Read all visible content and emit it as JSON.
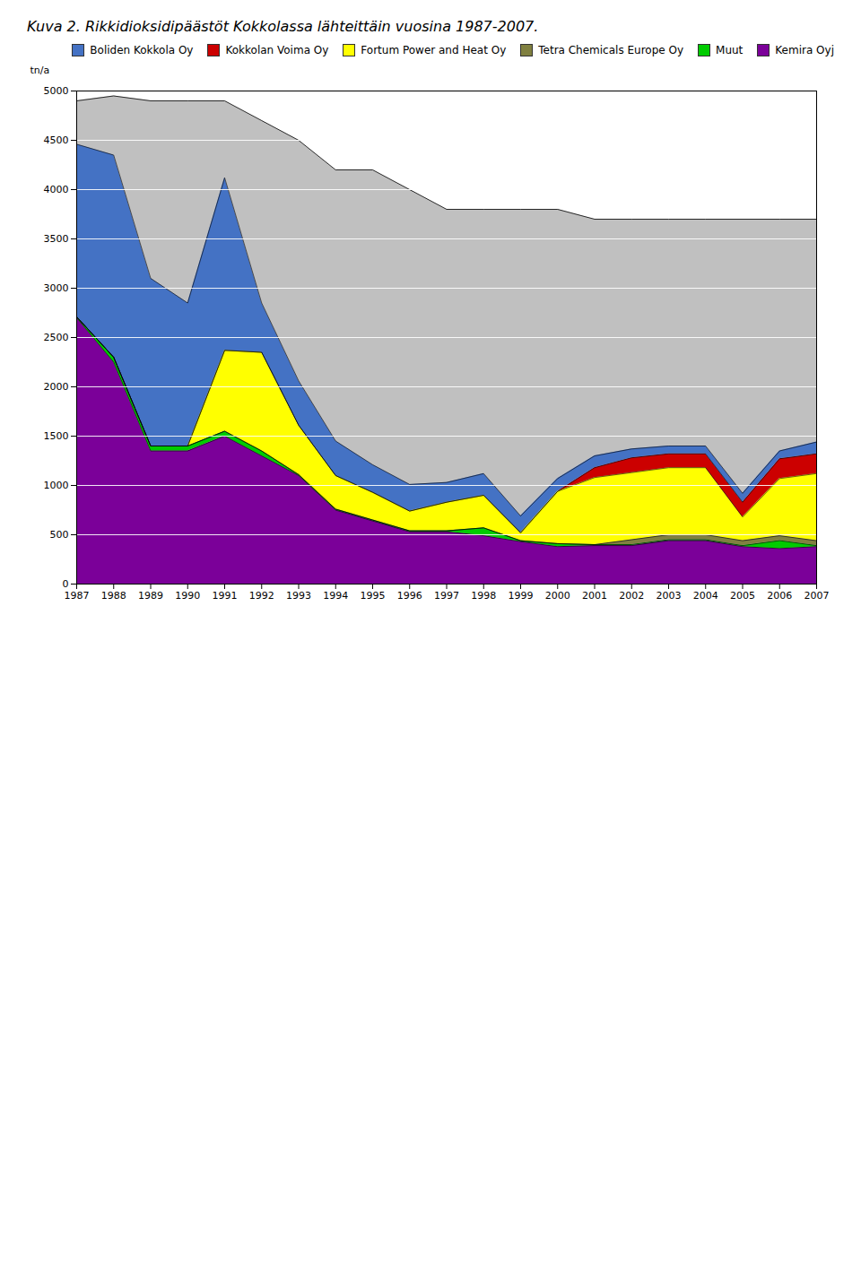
{
  "chart_data": {
    "type": "area",
    "title": "Kuva 2. Rikkidioksidipäästöt Kokkolassa lähteittäin vuosina 1987-2007.",
    "ylabel": "tn/a",
    "x": [
      1987,
      1988,
      1989,
      1990,
      1991,
      1992,
      1993,
      1994,
      1995,
      1996,
      1997,
      1998,
      1999,
      2000,
      2001,
      2002,
      2003,
      2004,
      2005,
      2006,
      2007
    ],
    "xlim": [
      1987,
      2007
    ],
    "xticks": [
      1987,
      1988,
      1989,
      1990,
      1991,
      1992,
      1993,
      1994,
      1995,
      1996,
      1997,
      1998,
      1999,
      2000,
      2001,
      2002,
      2003,
      2004,
      2005,
      2006,
      2007
    ],
    "ylim": [
      0,
      5000
    ],
    "yticks": [
      0,
      500,
      1000,
      1500,
      2000,
      2500,
      3000,
      3500,
      4000,
      4500,
      5000
    ],
    "grid": true,
    "legend": "upper right",
    "stacked": true,
    "series": [
      {
        "type": "area",
        "color": "#C0C0C0",
        "values": [
          4900,
          4950,
          4900,
          4900,
          4900,
          4700,
          4500,
          4200,
          4200,
          4000,
          3800,
          3800,
          3800,
          3800,
          3700,
          3700,
          3700,
          3700,
          3700,
          3700,
          3700
        ]
      },
      {
        "name": "Kemira Oyj",
        "type": "stacked_area",
        "color": "#7B0099",
        "values": [
          2700,
          2250,
          1350,
          1350,
          1500,
          1300,
          1100,
          750,
          640,
          530,
          530,
          490,
          430,
          380,
          390,
          390,
          440,
          440,
          380,
          360,
          380
        ]
      },
      {
        "name": "Muut",
        "type": "stacked_area",
        "color": "#00CC00",
        "values": [
          10,
          50,
          50,
          50,
          50,
          50,
          10,
          10,
          10,
          10,
          10,
          80,
          10,
          30,
          10,
          10,
          10,
          10,
          10,
          80,
          10
        ]
      },
      {
        "name": "Tetra Chemicals Europe Oy",
        "type": "stacked_area",
        "color": "#808040",
        "values": [
          0,
          0,
          0,
          0,
          0,
          0,
          0,
          0,
          0,
          0,
          0,
          0,
          0,
          0,
          0,
          50,
          50,
          50,
          50,
          50,
          50
        ]
      },
      {
        "name": "Fortum Power and Heat Oy",
        "type": "stacked_area",
        "color": "#FFFF00",
        "values": [
          0,
          0,
          0,
          0,
          820,
          1000,
          500,
          340,
          280,
          200,
          290,
          330,
          80,
          530,
          680,
          680,
          680,
          680,
          240,
          580,
          680
        ]
      },
      {
        "name": "Kokkolan Voima Oy",
        "type": "stacked_area",
        "color": "#CC0000",
        "values": [
          0,
          0,
          0,
          0,
          0,
          0,
          0,
          0,
          0,
          0,
          0,
          0,
          0,
          0,
          100,
          150,
          140,
          140,
          150,
          200,
          200
        ]
      },
      {
        "name": "Boliden Kokkola Oy",
        "type": "stacked_area",
        "color": "#4472C4",
        "values": [
          1750,
          2050,
          1700,
          1450,
          1750,
          500,
          450,
          350,
          280,
          270,
          200,
          220,
          170,
          130,
          120,
          90,
          80,
          80,
          90,
          80,
          120
        ]
      }
    ]
  }
}
